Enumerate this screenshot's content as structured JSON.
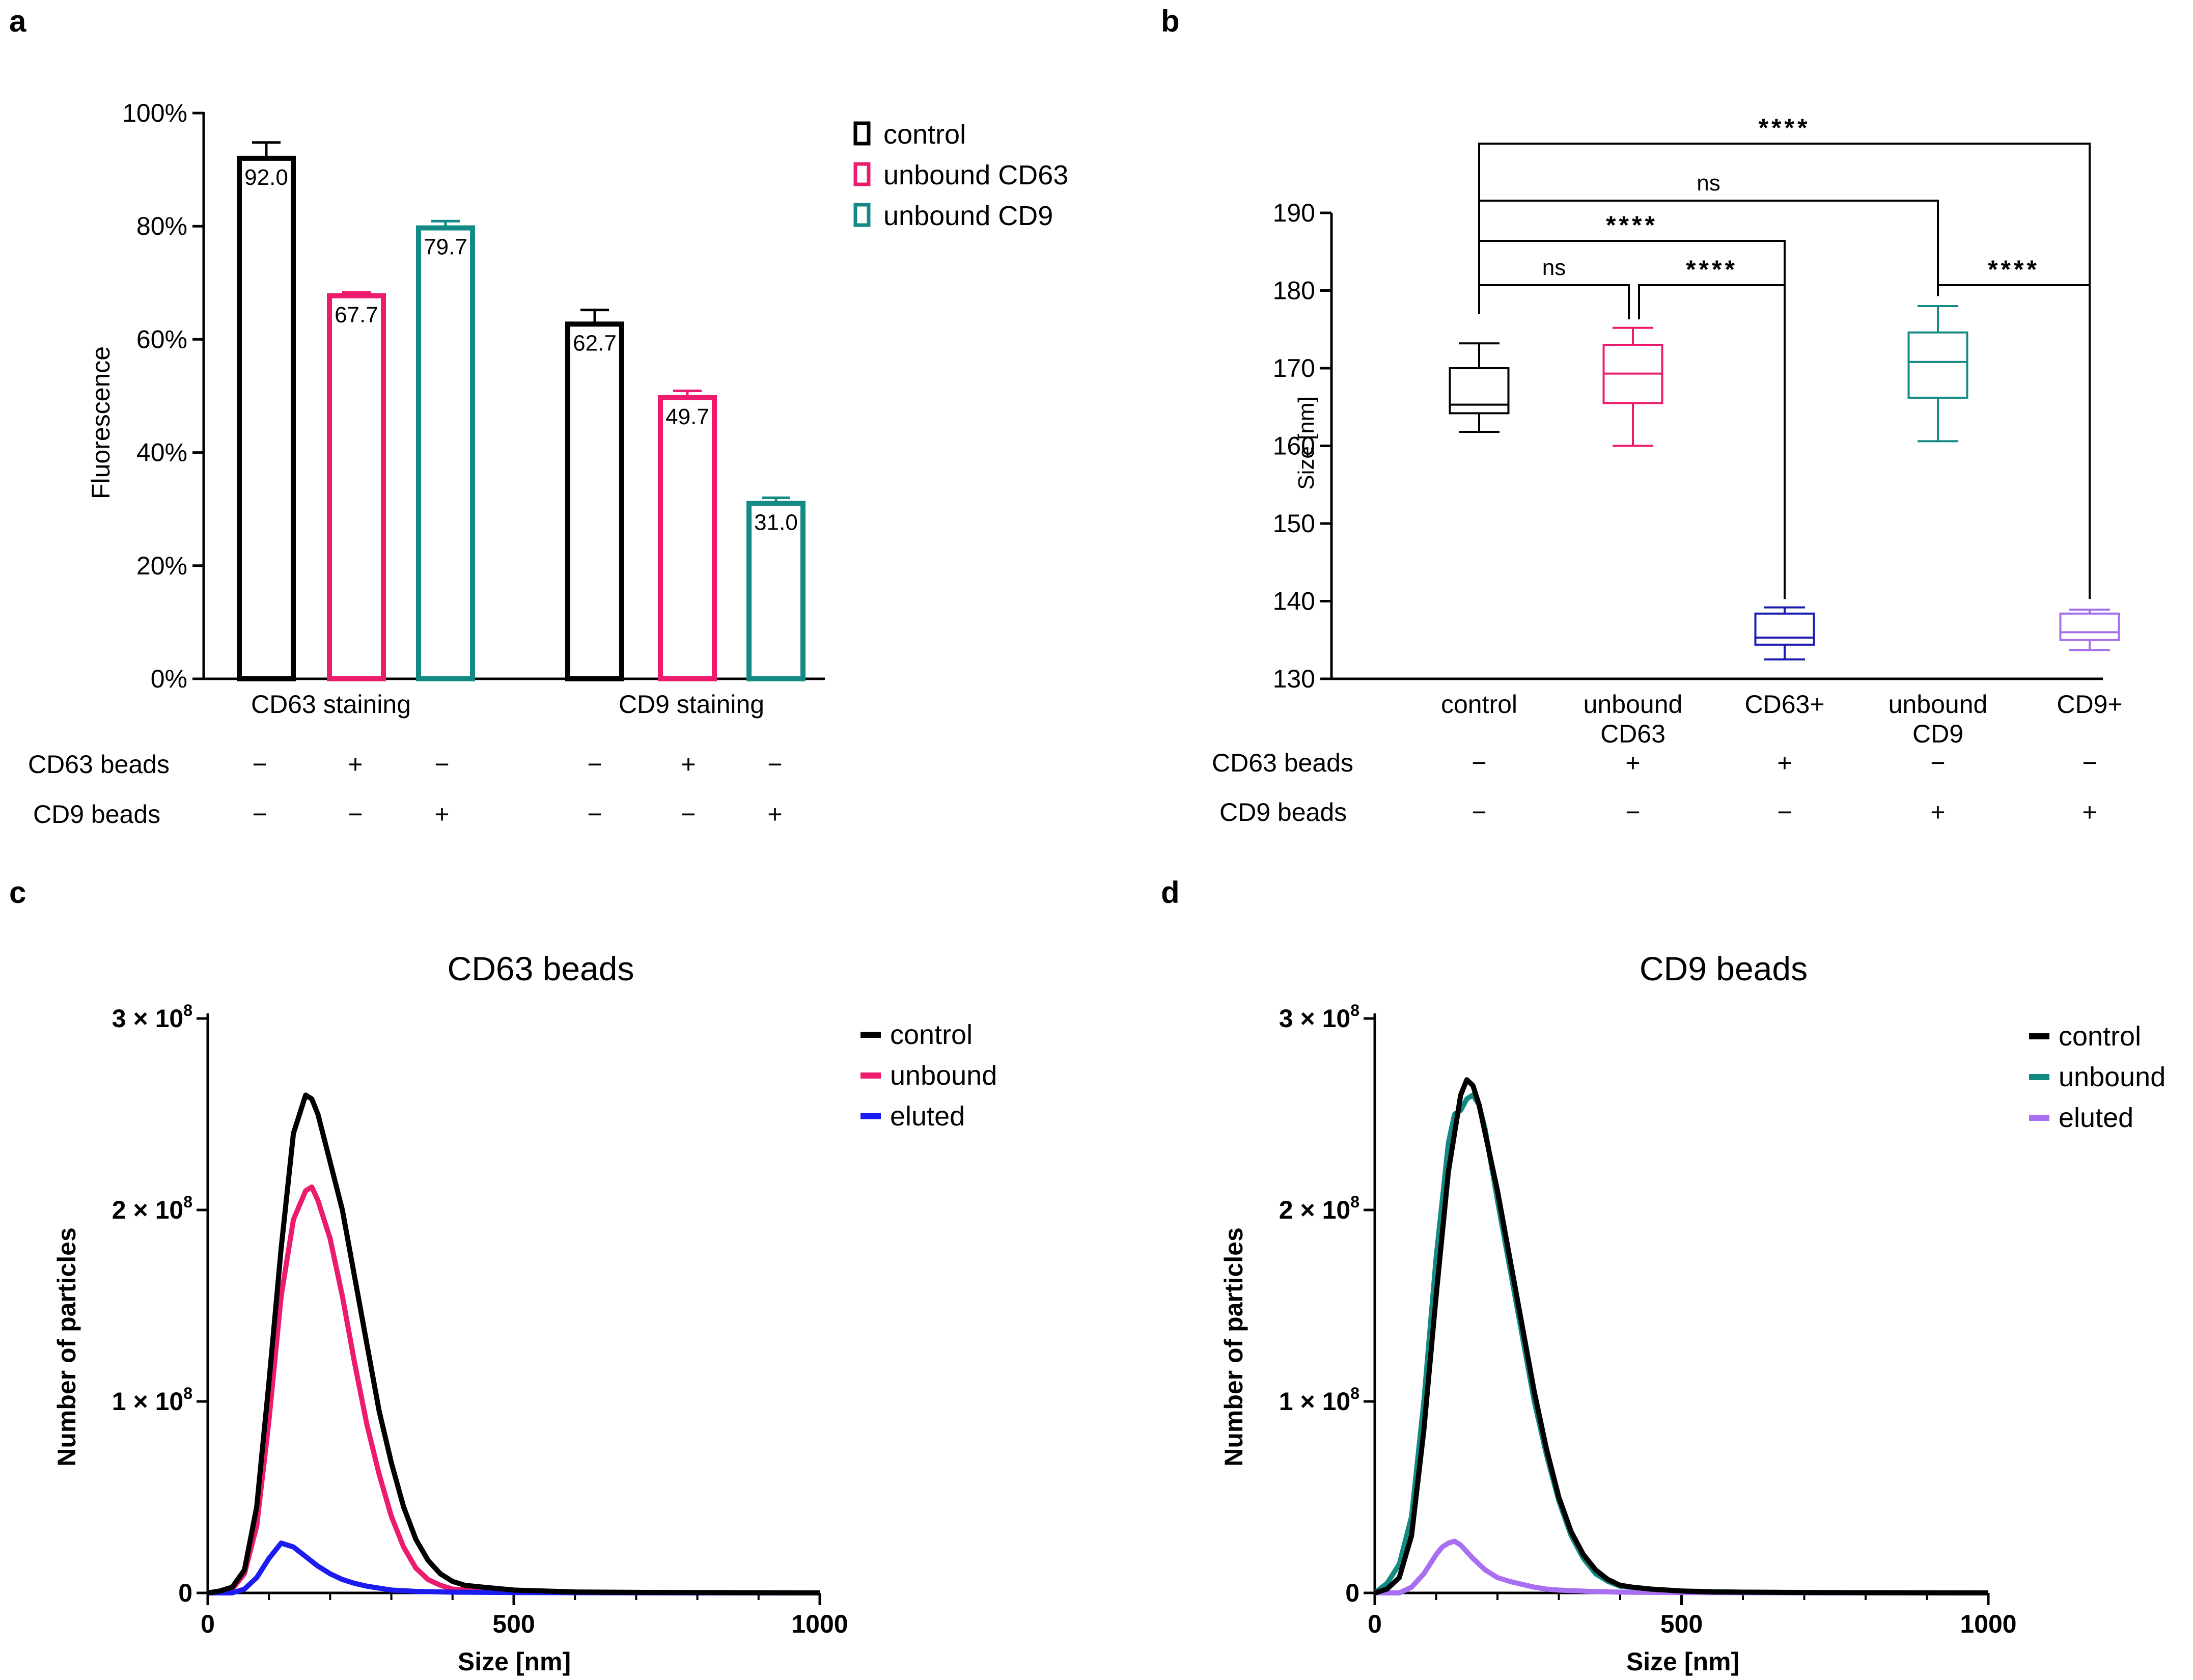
{
  "panels": {
    "a": "a",
    "b": "b",
    "c": "c",
    "d": "d"
  },
  "colors": {
    "control": "#000000",
    "unbound_cd63": "#ec1b6e",
    "unbound_cd9": "#138a84",
    "cd63_plus": "#1a1ab0",
    "cd9_plus": "#a36ee8",
    "eluted_cd63": "#1c1cf0",
    "eluted_cd9": "#a870f0"
  },
  "chart_data": [
    {
      "id": "a",
      "type": "bar",
      "ylabel": "Fluorescence",
      "ylim": [
        0,
        100
      ],
      "yticks": [
        "0%",
        "20%",
        "40%",
        "60%",
        "80%",
        "100%"
      ],
      "groups": [
        "CD63 staining",
        "CD9 staining"
      ],
      "series": [
        {
          "name": "control",
          "values": [
            92.0,
            62.7
          ],
          "labels": [
            "92.0",
            "62.7"
          ],
          "errors": [
            2.8,
            2.5
          ]
        },
        {
          "name": "unbound CD63",
          "values": [
            67.7,
            49.7
          ],
          "labels": [
            "67.7",
            "49.7"
          ],
          "errors": [
            0.6,
            1.2
          ]
        },
        {
          "name": "unbound CD9",
          "values": [
            79.7,
            31.0
          ],
          "labels": [
            "79.7",
            "31.0"
          ],
          "errors": [
            1.2,
            1.0
          ]
        }
      ],
      "conditions": [
        {
          "label": "CD63 beads",
          "signs": [
            "−",
            "+",
            "−",
            "−",
            "+",
            "−"
          ]
        },
        {
          "label": "CD9 beads",
          "signs": [
            "−",
            "−",
            "+",
            "−",
            "−",
            "+"
          ]
        }
      ],
      "legend": [
        "control",
        "unbound CD63",
        "unbound CD9"
      ],
      "legend_position": "top-right"
    },
    {
      "id": "b",
      "type": "box",
      "ylabel": "Size [nm]",
      "ylim": [
        130,
        190
      ],
      "yticks": [
        "130",
        "140",
        "150",
        "160",
        "170",
        "180",
        "190"
      ],
      "categories": [
        [
          "control"
        ],
        [
          "unbound",
          "CD63"
        ],
        [
          "CD63+"
        ],
        [
          "unbound",
          "CD9"
        ],
        [
          "CD9+"
        ]
      ],
      "boxes": [
        {
          "min": 161.8,
          "q1": 164.2,
          "median": 165.3,
          "q3": 170.0,
          "max": 173.2
        },
        {
          "min": 160.0,
          "q1": 165.5,
          "median": 169.3,
          "q3": 173.0,
          "max": 175.2
        },
        {
          "min": 132.5,
          "q1": 134.4,
          "median": 135.3,
          "q3": 138.4,
          "max": 139.2
        },
        {
          "min": 160.6,
          "q1": 166.2,
          "median": 170.8,
          "q3": 174.6,
          "max": 178.0
        },
        {
          "min": 133.7,
          "q1": 135.0,
          "median": 136.0,
          "q3": 138.4,
          "max": 138.9
        }
      ],
      "comparisons": [
        {
          "label": "****",
          "from": 0,
          "to": 4
        },
        {
          "label": "ns",
          "from": 0,
          "to": 3
        },
        {
          "label": "****",
          "from": 0,
          "to": 2
        },
        {
          "label": "ns",
          "from": 0,
          "to": 1
        },
        {
          "label": "****",
          "from": 1,
          "to": 2
        },
        {
          "label": "****",
          "from": 3,
          "to": 4
        }
      ],
      "conditions": [
        {
          "label": "CD63 beads",
          "signs": [
            "−",
            "+",
            "+",
            "−",
            "−"
          ]
        },
        {
          "label": "CD9 beads",
          "signs": [
            "−",
            "−",
            "−",
            "+",
            "+"
          ]
        }
      ]
    },
    {
      "id": "c",
      "type": "line",
      "title": "CD63 beads",
      "xlabel": "Size [nm]",
      "ylabel": "Number of particles",
      "xlim": [
        0,
        1000
      ],
      "ylim": [
        0,
        3
      ],
      "xticks": [
        "0",
        "500",
        "1000"
      ],
      "yticks": [
        "0",
        "1 × 10",
        "2 × 10",
        "3 × 10"
      ],
      "ytick_exp": "8",
      "legend": [
        "control",
        "unbound",
        "eluted"
      ],
      "legend_position": "top-right",
      "series": [
        {
          "name": "control",
          "x": [
            0,
            20,
            40,
            60,
            80,
            100,
            120,
            140,
            160,
            170,
            180,
            200,
            220,
            240,
            260,
            280,
            300,
            320,
            340,
            360,
            380,
            400,
            420,
            450,
            500,
            550,
            600,
            700,
            800,
            900,
            1000
          ],
          "y": [
            0,
            0.01,
            0.03,
            0.12,
            0.45,
            1.1,
            1.8,
            2.4,
            2.6,
            2.58,
            2.5,
            2.25,
            2.0,
            1.65,
            1.3,
            0.95,
            0.68,
            0.45,
            0.28,
            0.17,
            0.1,
            0.06,
            0.04,
            0.03,
            0.015,
            0.01,
            0.005,
            0.003,
            0.002,
            0.001,
            0
          ]
        },
        {
          "name": "unbound",
          "x": [
            0,
            20,
            40,
            60,
            80,
            100,
            120,
            140,
            160,
            170,
            180,
            200,
            220,
            240,
            260,
            280,
            300,
            320,
            340,
            360,
            380,
            400,
            450,
            500,
            600,
            800,
            1000
          ],
          "y": [
            0,
            0.005,
            0.02,
            0.1,
            0.35,
            0.9,
            1.55,
            1.95,
            2.1,
            2.12,
            2.05,
            1.85,
            1.55,
            1.2,
            0.88,
            0.62,
            0.4,
            0.24,
            0.13,
            0.07,
            0.04,
            0.02,
            0.01,
            0.005,
            0.003,
            0.001,
            0
          ]
        },
        {
          "name": "eluted",
          "x": [
            0,
            40,
            60,
            80,
            100,
            120,
            140,
            160,
            180,
            200,
            220,
            240,
            260,
            280,
            300,
            340,
            400,
            500,
            600,
            800,
            1000
          ],
          "y": [
            0,
            0,
            0.02,
            0.08,
            0.18,
            0.26,
            0.24,
            0.19,
            0.14,
            0.1,
            0.07,
            0.05,
            0.035,
            0.025,
            0.015,
            0.008,
            0.004,
            0.002,
            0.001,
            0,
            0
          ]
        }
      ]
    },
    {
      "id": "d",
      "type": "line",
      "title": "CD9 beads",
      "xlabel": "Size [nm]",
      "ylabel": "Number of particles",
      "xlim": [
        0,
        1000
      ],
      "ylim": [
        0,
        3
      ],
      "xticks": [
        "0",
        "500",
        "1000"
      ],
      "yticks": [
        "0",
        "1 × 10",
        "2 × 10",
        "3 × 10"
      ],
      "ytick_exp": "8",
      "legend": [
        "control",
        "unbound",
        "eluted"
      ],
      "legend_position": "top-right",
      "series": [
        {
          "name": "control",
          "x": [
            0,
            20,
            40,
            60,
            80,
            100,
            120,
            140,
            150,
            160,
            170,
            180,
            200,
            220,
            240,
            260,
            280,
            300,
            320,
            340,
            360,
            380,
            400,
            420,
            450,
            500,
            550,
            600,
            700,
            800,
            1000
          ],
          "y": [
            0,
            0.02,
            0.08,
            0.3,
            0.85,
            1.55,
            2.2,
            2.6,
            2.68,
            2.65,
            2.55,
            2.4,
            2.1,
            1.75,
            1.4,
            1.05,
            0.75,
            0.5,
            0.32,
            0.2,
            0.12,
            0.07,
            0.04,
            0.03,
            0.02,
            0.01,
            0.005,
            0.004,
            0.002,
            0.001,
            0
          ]
        },
        {
          "name": "unbound",
          "x": [
            0,
            20,
            40,
            60,
            80,
            100,
            120,
            130,
            140,
            150,
            160,
            170,
            180,
            200,
            220,
            240,
            260,
            280,
            300,
            320,
            340,
            360,
            380,
            400,
            450,
            500,
            600,
            800,
            1000
          ],
          "y": [
            0,
            0.05,
            0.15,
            0.4,
            1.0,
            1.75,
            2.35,
            2.5,
            2.52,
            2.58,
            2.6,
            2.55,
            2.42,
            2.05,
            1.7,
            1.35,
            1.0,
            0.72,
            0.48,
            0.3,
            0.18,
            0.1,
            0.06,
            0.035,
            0.02,
            0.01,
            0.004,
            0.001,
            0
          ]
        },
        {
          "name": "eluted",
          "x": [
            0,
            40,
            60,
            80,
            100,
            110,
            120,
            130,
            140,
            160,
            180,
            200,
            220,
            240,
            260,
            280,
            300,
            350,
            400,
            500,
            600,
            800,
            1000
          ],
          "y": [
            0,
            0,
            0.03,
            0.1,
            0.2,
            0.24,
            0.26,
            0.27,
            0.25,
            0.18,
            0.12,
            0.08,
            0.06,
            0.045,
            0.03,
            0.02,
            0.015,
            0.008,
            0.004,
            0.002,
            0.001,
            0,
            0
          ]
        }
      ]
    }
  ]
}
